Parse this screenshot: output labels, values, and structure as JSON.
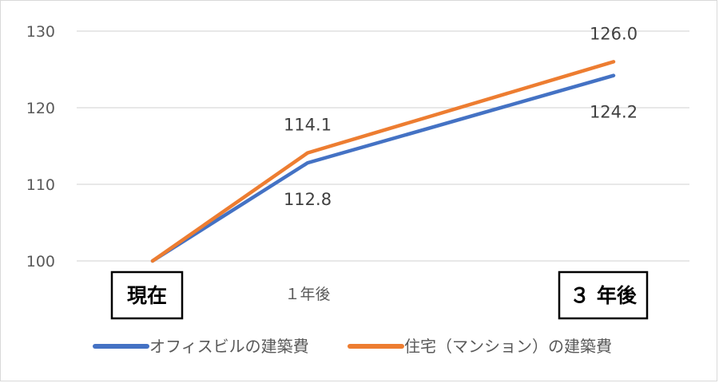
{
  "chart_data": {
    "type": "line",
    "categories": [
      "現在",
      "１年後",
      "３ 年後"
    ],
    "category_boxed": [
      true,
      false,
      true
    ],
    "series": [
      {
        "name": "オフィスビルの建築費",
        "values": [
          100,
          112.8,
          124.2
        ],
        "labels": [
          "",
          "112.8",
          "124.2"
        ],
        "label_position": "below",
        "color": "#4472c4"
      },
      {
        "name": "住宅（マンション）の建築費",
        "values": [
          100,
          114.1,
          126.0
        ],
        "labels": [
          "",
          "114.1",
          "126.0"
        ],
        "label_position": "above",
        "color": "#ed7d31"
      }
    ],
    "y_ticks": [
      "100",
      "110",
      "120",
      "130"
    ],
    "ylim": [
      100,
      130
    ],
    "grid": true,
    "legend_position": "bottom",
    "title": "",
    "xlabel": "",
    "ylabel": ""
  }
}
